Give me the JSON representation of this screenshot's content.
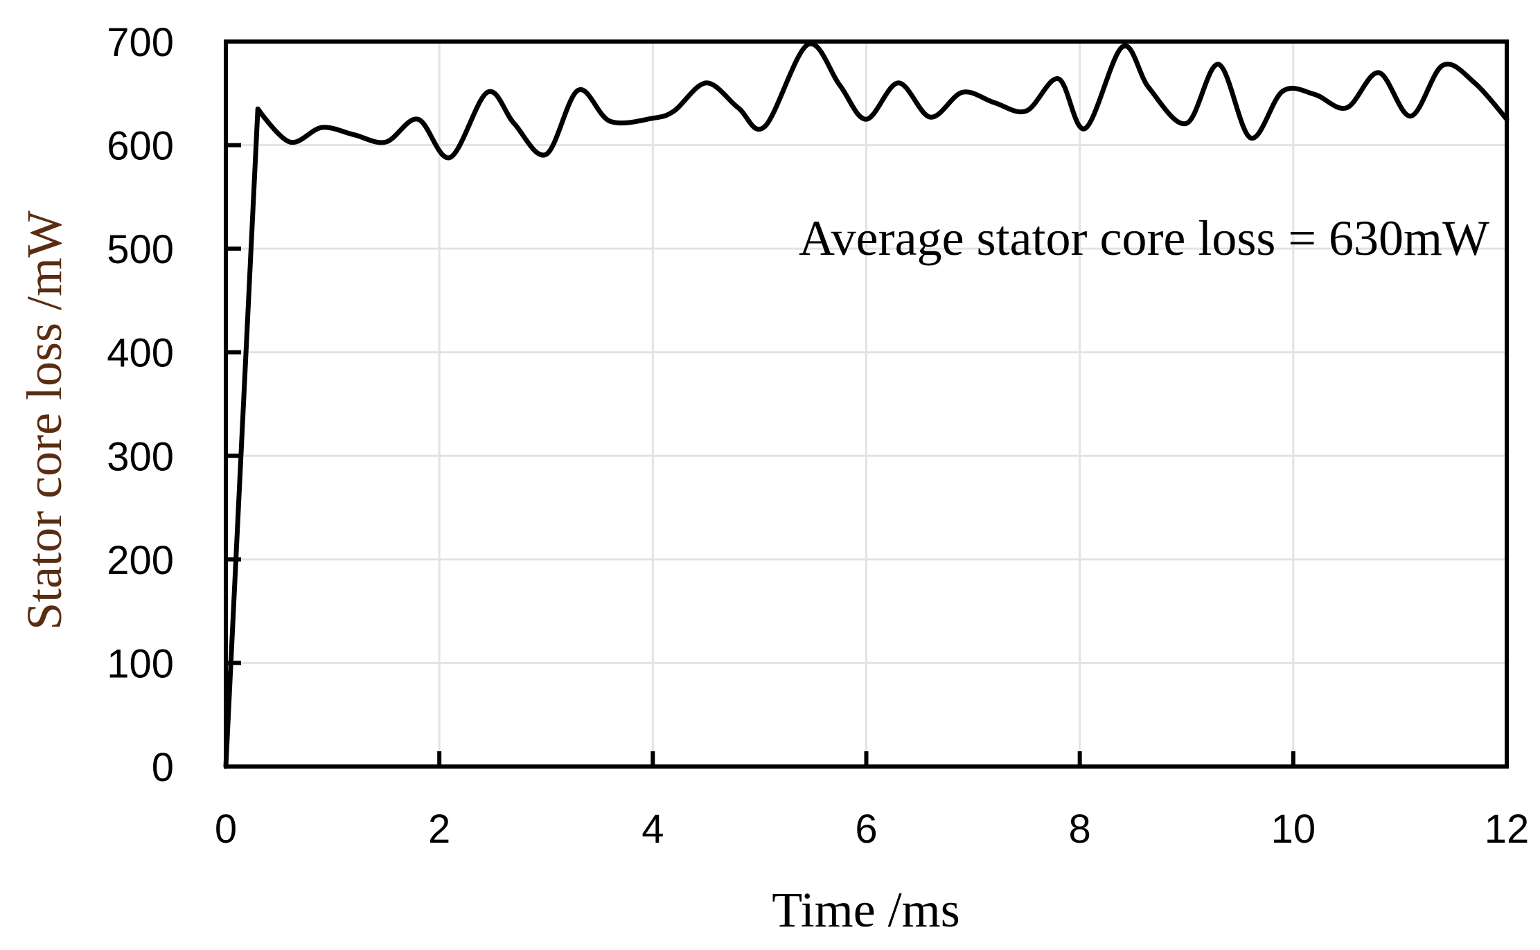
{
  "chart_data": {
    "type": "line",
    "title": "",
    "xlabel": "Time /ms",
    "ylabel": "Stator core loss /mW",
    "xlim": [
      0,
      12
    ],
    "ylim": [
      0,
      700
    ],
    "xticks": [
      0,
      2,
      4,
      6,
      8,
      10,
      12
    ],
    "yticks": [
      0,
      100,
      200,
      300,
      400,
      500,
      600,
      700
    ],
    "grid": true,
    "annotation": "Average stator core loss = 630mW",
    "colors": {
      "line": "#000000",
      "grid": "#e3e3e3",
      "ylabel": "#5a2d12",
      "xlabel": "#000000"
    },
    "series": [
      {
        "name": "Stator core loss",
        "x": [
          0,
          0.3,
          0.6,
          0.9,
          1.2,
          1.5,
          1.8,
          2.1,
          2.45,
          2.7,
          3.0,
          3.3,
          3.6,
          4.0,
          4.2,
          4.5,
          4.8,
          5.05,
          5.45,
          5.75,
          6.0,
          6.3,
          6.6,
          6.9,
          7.2,
          7.5,
          7.8,
          8.05,
          8.4,
          8.65,
          9.0,
          9.3,
          9.6,
          9.9,
          10.2,
          10.5,
          10.8,
          11.1,
          11.4,
          11.7,
          12.0
        ],
        "y": [
          0,
          635,
          603,
          617,
          610,
          603,
          625,
          588,
          651,
          621,
          591,
          653,
          623,
          626,
          633,
          660,
          636,
          618,
          697,
          658,
          625,
          660,
          627,
          651,
          641,
          633,
          664,
          616,
          695,
          655,
          621,
          678,
          607,
          652,
          649,
          636,
          670,
          628,
          677,
          660,
          625
        ]
      }
    ]
  }
}
